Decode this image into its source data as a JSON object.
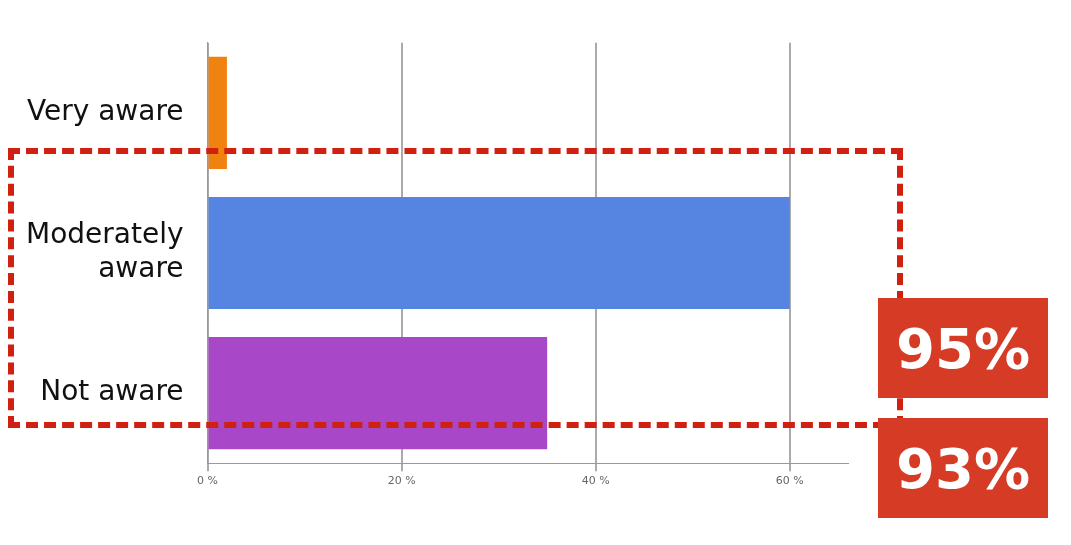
{
  "chart_data": {
    "type": "bar",
    "orientation": "horizontal",
    "categories": [
      "Very aware",
      "Moderately aware",
      "Not aware"
    ],
    "values": [
      2,
      60,
      35
    ],
    "colors": [
      "#f0820f",
      "#5585e0",
      "#a847c8"
    ],
    "xlim": [
      0,
      66
    ],
    "xticks": [
      {
        "value": 0,
        "label": "0 %"
      },
      {
        "value": 20,
        "label": "20 %"
      },
      {
        "value": 40,
        "label": "40 %"
      },
      {
        "value": 60,
        "label": "60 %"
      }
    ],
    "grid": "x",
    "legend": false,
    "annotations": [
      "95%",
      "93%"
    ]
  }
}
